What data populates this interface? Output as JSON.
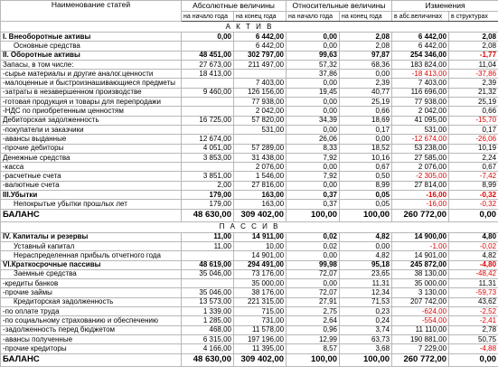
{
  "table": {
    "groups": [
      "Наименование статей",
      "Абсолютные величины",
      "Относительные величины",
      "Изменения"
    ],
    "subheads": [
      "на начало года",
      "на конец года",
      "на начало года",
      "на конец года",
      "в абс.величинах",
      "в структурах"
    ],
    "sections": [
      {
        "title": "А К Т И В",
        "rows": [
          [
            "I. Внеоборотные активы",
            "0,00",
            "6 442,00",
            "0,00",
            "2,08",
            "6 442,00",
            "2,08"
          ],
          [
            "Основные средства",
            null,
            "6 442,00",
            "0,00",
            "2,08",
            "6 442,00",
            "2,08"
          ],
          [
            "II. Оборотные активы",
            "48 451,00",
            "302 797,00",
            "99,63",
            "97,87",
            "254 346,00",
            "-1,77"
          ],
          [
            "Запасы, в том числе:",
            "27 673,00",
            "211 497,00",
            "57,32",
            "68,36",
            "183 824,00",
            "11,04"
          ],
          [
            "-сырье материалы и другие аналог.ценности",
            "18 413,00",
            null,
            "37,86",
            "0,00",
            "-18 413,00",
            "-37,86"
          ],
          [
            "-малоценные и быстроизнашивающиеся предметы",
            null,
            "7 403,00",
            "0,00",
            "2,39",
            "7 403,00",
            "2,39"
          ],
          [
            "-затраты в незавершенном производстве",
            "9 460,00",
            "126 156,00",
            "19,45",
            "40,77",
            "116 696,00",
            "21,32"
          ],
          [
            "-готовая продукция и товары для перепродажи",
            null,
            "77 938,00",
            "0,00",
            "25,19",
            "77 938,00",
            "25,19"
          ],
          [
            "-НДС по приобретенным ценностям",
            null,
            "2 042,00",
            "0,00",
            "0,66",
            "2 042,00",
            "0,66"
          ],
          [
            "Дебиторская задолженность",
            "16 725,00",
            "57 820,00",
            "34,39",
            "18,69",
            "41 095,00",
            "-15,70"
          ],
          [
            "-покупатели и заказчики",
            null,
            "531,00",
            "0,00",
            "0,17",
            "531,00",
            "0,17"
          ],
          [
            "-авансы выданные",
            "12 674,00",
            null,
            "26,06",
            "0,00",
            "-12 674,00",
            "-26,06"
          ],
          [
            "-прочие дебиторы",
            "4 051,00",
            "57 289,00",
            "8,33",
            "18,52",
            "53 238,00",
            "10,19"
          ],
          [
            "Денежные средства",
            "3 853,00",
            "31 438,00",
            "7,92",
            "10,16",
            "27 585,00",
            "2,24"
          ],
          [
            "-касса",
            null,
            "2 076,00",
            "0,00",
            "0,67",
            "2 076,00",
            "0,67"
          ],
          [
            "-расчетные счета",
            "3 851,00",
            "1 546,00",
            "7,92",
            "0,50",
            "-2 305,00",
            "-7,42"
          ],
          [
            "-валютные счета",
            "2,00",
            "27 816,00",
            "0,00",
            "8,99",
            "27 814,00",
            "8,99"
          ],
          [
            "III.Убытки",
            "179,00",
            "163,00",
            "0,37",
            "0,05",
            "-16,00",
            "-0,32"
          ],
          [
            "Непокрытые убытки прошлых лет",
            "179,00",
            "163,00",
            "0,37",
            "0,05",
            "-16,00",
            "-0,32"
          ],
          [
            "БАЛАНС",
            "48 630,00",
            "309 402,00",
            "100,00",
            "100,00",
            "260 772,00",
            "0,00"
          ]
        ]
      },
      {
        "title": "П А С С И В",
        "rows": [
          [
            "IV. Капиталы и резервы",
            "11,00",
            "14 911,00",
            "0,02",
            "4,82",
            "14 900,00",
            "4,80"
          ],
          [
            "Уставный капитал",
            "11,00",
            "10,00",
            "0,02",
            "0,00",
            "-1,00",
            "-0,02"
          ],
          [
            "Нераспределенная прибыль отчетного года",
            null,
            "14 901,00",
            "0,00",
            "4,82",
            "14 901,00",
            "4,82"
          ],
          [
            "VI.Краткосрочные пассивы",
            "48 619,00",
            "294 491,00",
            "99,98",
            "95,18",
            "245 872,00",
            "-4,80"
          ],
          [
            "Заемные средства",
            "35 046,00",
            "73 176,00",
            "72,07",
            "23,65",
            "38 130,00",
            "-48,42"
          ],
          [
            "-кредиты банков",
            null,
            "35 000,00",
            "0,00",
            "11,31",
            "35 000,00",
            "11,31"
          ],
          [
            "-прочие займы",
            "35 046,00",
            "38 176,00",
            "72,07",
            "12,34",
            "3 130,00",
            "-59,73"
          ],
          [
            "Кредиторская задолженность",
            "13 573,00",
            "221 315,00",
            "27,91",
            "71,53",
            "207 742,00",
            "43,62"
          ],
          [
            "-по оплате труда",
            "1 339,00",
            "715,00",
            "2,75",
            "0,23",
            "-624,00",
            "-2,52"
          ],
          [
            "-по социальному страхованию и обеспечению",
            "1 285,00",
            "731,00",
            "2,64",
            "0,24",
            "-554,00",
            "-2,41"
          ],
          [
            "-задолженность перед бюджетом",
            "468,00",
            "11 578,00",
            "0,96",
            "3,74",
            "11 110,00",
            "2,78"
          ],
          [
            "-авансы полученные",
            "6 315,00",
            "197 196,00",
            "12,99",
            "63,73",
            "190 881,00",
            "50,75"
          ],
          [
            "-прочие кредиторы",
            "4 166,00",
            "11 395,00",
            "8,57",
            "3,68",
            "7 229,00",
            "-4,88"
          ],
          [
            "БАЛАНС",
            "48 630,00",
            "309 402,00",
            "100,00",
            "100,00",
            "260 772,00",
            "0,00"
          ]
        ]
      }
    ]
  }
}
